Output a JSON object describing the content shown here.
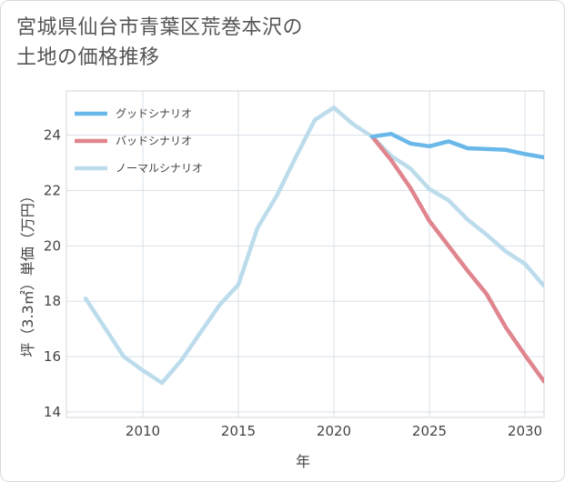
{
  "title_lines": [
    "宮城県仙台市青葉区荒巻本沢の",
    "土地の価格推移"
  ],
  "chart_data": {
    "type": "line",
    "title": "宮城県仙台市青葉区荒巻本沢の土地の価格推移",
    "xlabel": "年",
    "ylabel": "坪（3.3㎡）単価（万円）",
    "xlim": [
      2006,
      2031
    ],
    "ylim": [
      13.8,
      25.6
    ],
    "xticks": [
      2010,
      2015,
      2020,
      2025,
      2030
    ],
    "yticks": [
      14,
      16,
      18,
      20,
      22,
      24
    ],
    "grid": true,
    "legend_position": "top-left",
    "series": [
      {
        "name": "グッドシナリオ",
        "color": "#6ab8ea",
        "x": [
          2022,
          2023,
          2024,
          2025,
          2026,
          2027,
          2028,
          2029,
          2030,
          2031
        ],
        "y": [
          23.95,
          24.05,
          23.7,
          23.6,
          23.78,
          23.53,
          23.5,
          23.47,
          23.32,
          23.2
        ]
      },
      {
        "name": "バッドシナリオ",
        "color": "#e0848e",
        "x": [
          2022,
          2023,
          2024,
          2025,
          2026,
          2027,
          2028,
          2029,
          2030,
          2031
        ],
        "y": [
          23.95,
          23.1,
          22.1,
          20.9,
          20.0,
          19.1,
          18.25,
          17.05,
          16.05,
          15.1
        ]
      },
      {
        "name": "ノーマルシナリオ",
        "color": "#bcdcec",
        "x": [
          2007,
          2008,
          2009,
          2010,
          2011,
          2012,
          2013,
          2014,
          2015,
          2016,
          2017,
          2018,
          2019,
          2020,
          2021,
          2022,
          2023,
          2024,
          2025,
          2026,
          2027,
          2028,
          2029,
          2030,
          2031
        ],
        "y": [
          18.1,
          17.05,
          16.0,
          15.5,
          15.05,
          15.85,
          16.85,
          17.85,
          18.6,
          20.65,
          21.8,
          23.2,
          24.55,
          25.0,
          24.4,
          23.95,
          23.25,
          22.8,
          22.05,
          21.65,
          20.95,
          20.4,
          19.8,
          19.35,
          18.55
        ]
      }
    ]
  }
}
